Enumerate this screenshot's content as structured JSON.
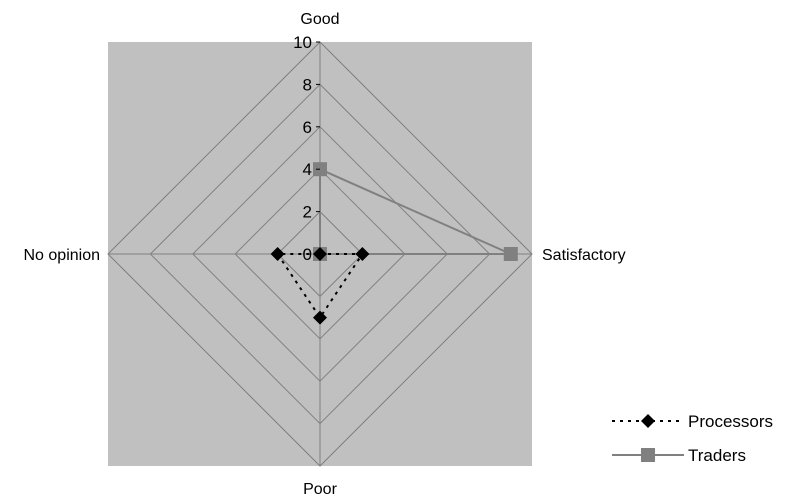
{
  "chart_data": {
    "type": "radar",
    "axes": [
      "Good",
      "Satisfactory",
      "Poor",
      "No opinion"
    ],
    "rlim": [
      0,
      10
    ],
    "ticks": [
      "0",
      "2",
      "4",
      "6",
      "8",
      "10"
    ],
    "tick_values": [
      0,
      2,
      4,
      6,
      8,
      10
    ],
    "grid": true,
    "legend_position": "bottom-right",
    "series": [
      {
        "name": "Processors",
        "values": [
          0,
          2,
          3,
          2
        ],
        "color": "#000000",
        "line": "dotted",
        "marker": "diamond"
      },
      {
        "name": "Traders",
        "values": [
          4,
          9,
          0,
          0
        ],
        "color": "#808080",
        "line": "solid",
        "marker": "square"
      }
    ],
    "colors": {
      "plot_background": "#c0c0c0",
      "grid": "#808080"
    }
  }
}
